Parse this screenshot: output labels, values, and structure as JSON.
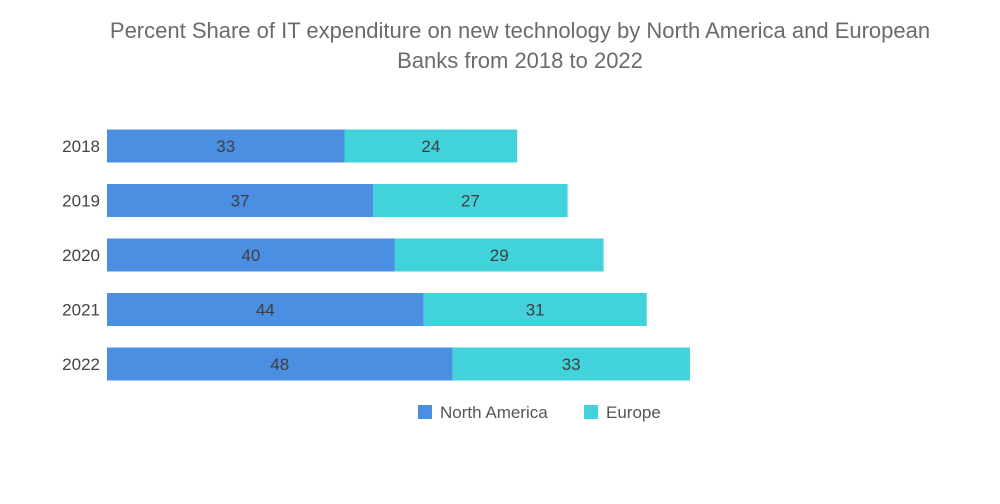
{
  "chart_data": {
    "type": "bar",
    "orientation": "horizontal",
    "stacked": true,
    "title_lines": [
      "Percent Share of IT expenditure on new technology by North America and European",
      "Banks from 2018 to 2022"
    ],
    "categories": [
      "2018",
      "2019",
      "2020",
      "2021",
      "2022"
    ],
    "series": [
      {
        "name": "North America",
        "values": [
          33,
          37,
          40,
          44,
          48
        ],
        "color": "#4a8fe2"
      },
      {
        "name": "Europe",
        "values": [
          24,
          27,
          29,
          31,
          33
        ],
        "color": "#41d2da"
      }
    ],
    "xlim": [
      0,
      107
    ],
    "grid": false,
    "legend_position": "bottom"
  }
}
